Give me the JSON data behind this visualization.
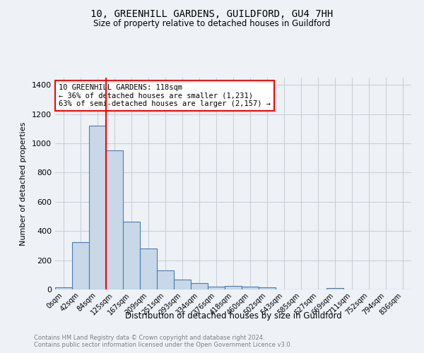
{
  "title": "10, GREENHILL GARDENS, GUILDFORD, GU4 7HH",
  "subtitle": "Size of property relative to detached houses in Guildford",
  "xlabel": "Distribution of detached houses by size in Guildford",
  "ylabel": "Number of detached properties",
  "footnote1": "Contains HM Land Registry data © Crown copyright and database right 2024.",
  "footnote2": "Contains public sector information licensed under the Open Government Licence v3.0.",
  "bar_labels": [
    "0sqm",
    "42sqm",
    "84sqm",
    "125sqm",
    "167sqm",
    "209sqm",
    "251sqm",
    "293sqm",
    "334sqm",
    "376sqm",
    "418sqm",
    "460sqm",
    "502sqm",
    "543sqm",
    "585sqm",
    "627sqm",
    "669sqm",
    "711sqm",
    "752sqm",
    "794sqm",
    "836sqm"
  ],
  "bar_values": [
    15,
    325,
    1120,
    950,
    465,
    280,
    130,
    70,
    45,
    20,
    22,
    20,
    15,
    0,
    0,
    0,
    10,
    0,
    0,
    0,
    0
  ],
  "bar_color": "#c8d8e8",
  "bar_edge_color": "#4a7ab5",
  "grid_color": "#c8d0d8",
  "background_color": "#eef2f7",
  "property_line_color": "red",
  "annotation_text": "10 GREENHILL GARDENS: 118sqm\n← 36% of detached houses are smaller (1,231)\n63% of semi-detached houses are larger (2,157) →",
  "annotation_box_color": "white",
  "annotation_box_edge": "red",
  "ylim": [
    0,
    1450
  ],
  "yticks": [
    0,
    200,
    400,
    600,
    800,
    1000,
    1200,
    1400
  ]
}
